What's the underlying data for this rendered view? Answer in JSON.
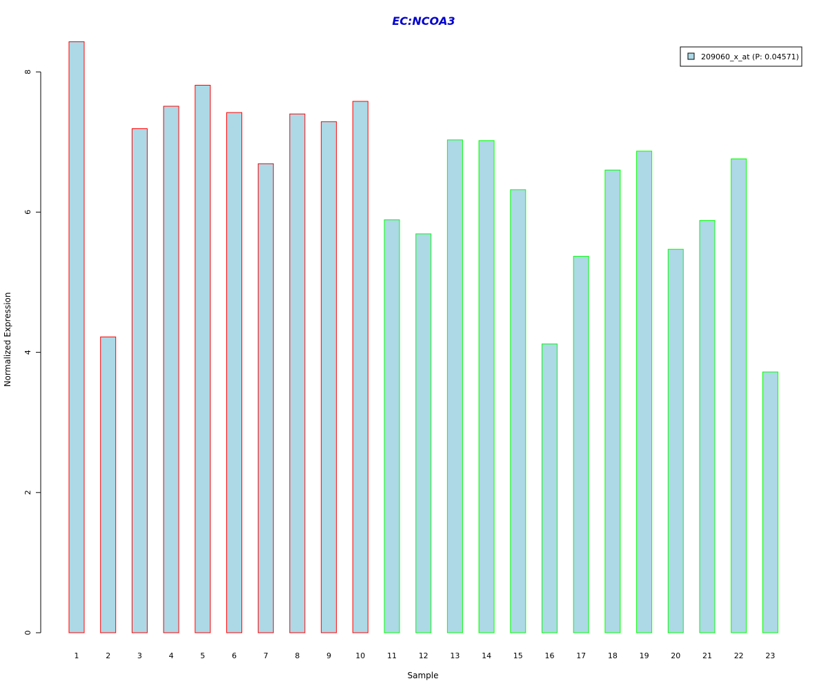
{
  "colors": {
    "bar_fill": "#add8e6",
    "group1_border": "#ff0000",
    "group2_border": "#00ff00",
    "title": "#0000cd",
    "axis": "#000000"
  },
  "chart_data": {
    "type": "bar",
    "title": "EC:NCOA3",
    "xlabel": "Sample",
    "ylabel": "Normalized Expression",
    "ylim": [
      0,
      8.45
    ],
    "yticks": [
      "0",
      "2",
      "4",
      "6",
      "8"
    ],
    "categories": [
      "1",
      "2",
      "3",
      "4",
      "5",
      "6",
      "7",
      "8",
      "9",
      "10",
      "11",
      "12",
      "13",
      "14",
      "15",
      "16",
      "17",
      "18",
      "19",
      "20",
      "21",
      "22",
      "23"
    ],
    "values": [
      8.43,
      4.22,
      7.19,
      7.51,
      7.81,
      7.42,
      6.69,
      7.4,
      7.29,
      7.58,
      5.89,
      5.69,
      7.03,
      7.02,
      6.32,
      4.12,
      5.37,
      6.6,
      6.87,
      5.47,
      5.88,
      6.76,
      3.72
    ],
    "groups": [
      "A",
      "A",
      "A",
      "A",
      "A",
      "A",
      "A",
      "A",
      "A",
      "A",
      "B",
      "B",
      "B",
      "B",
      "B",
      "B",
      "B",
      "B",
      "B",
      "B",
      "B",
      "B",
      "B"
    ],
    "legend": {
      "entries": [
        "209060_x_at (P: 0.04571)"
      ],
      "position": "top-right"
    },
    "grid": false
  }
}
